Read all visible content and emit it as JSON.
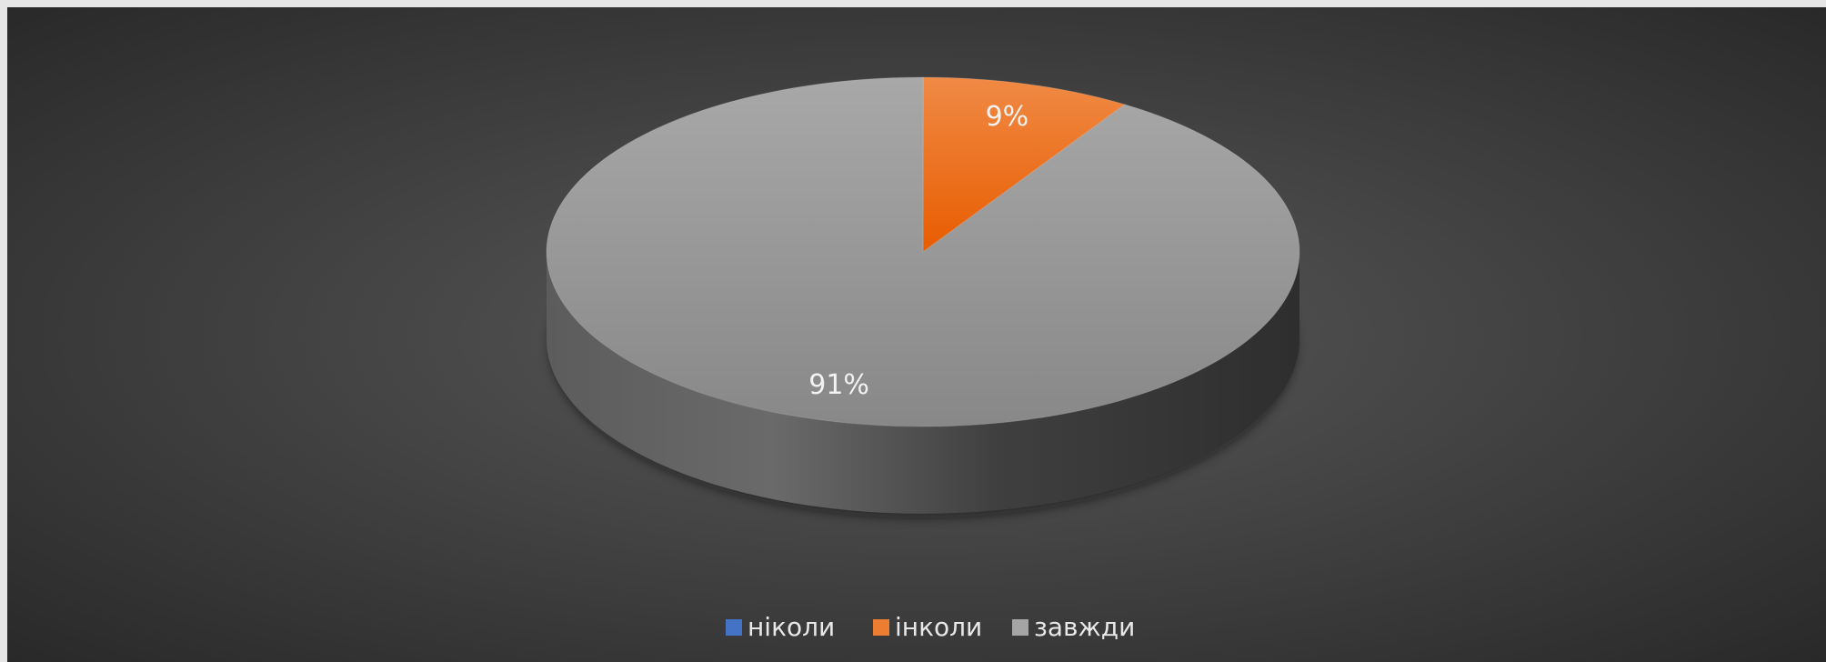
{
  "chart_data": {
    "type": "pie3d",
    "categories": [
      "ніколи",
      "інколи",
      "завжди"
    ],
    "values": [
      0,
      9,
      91
    ],
    "value_labels": [
      null,
      "9%",
      "91%"
    ],
    "colors": [
      "#4472c4",
      "#ed7d31",
      "#a5a5a5"
    ],
    "legend": "bottom"
  }
}
